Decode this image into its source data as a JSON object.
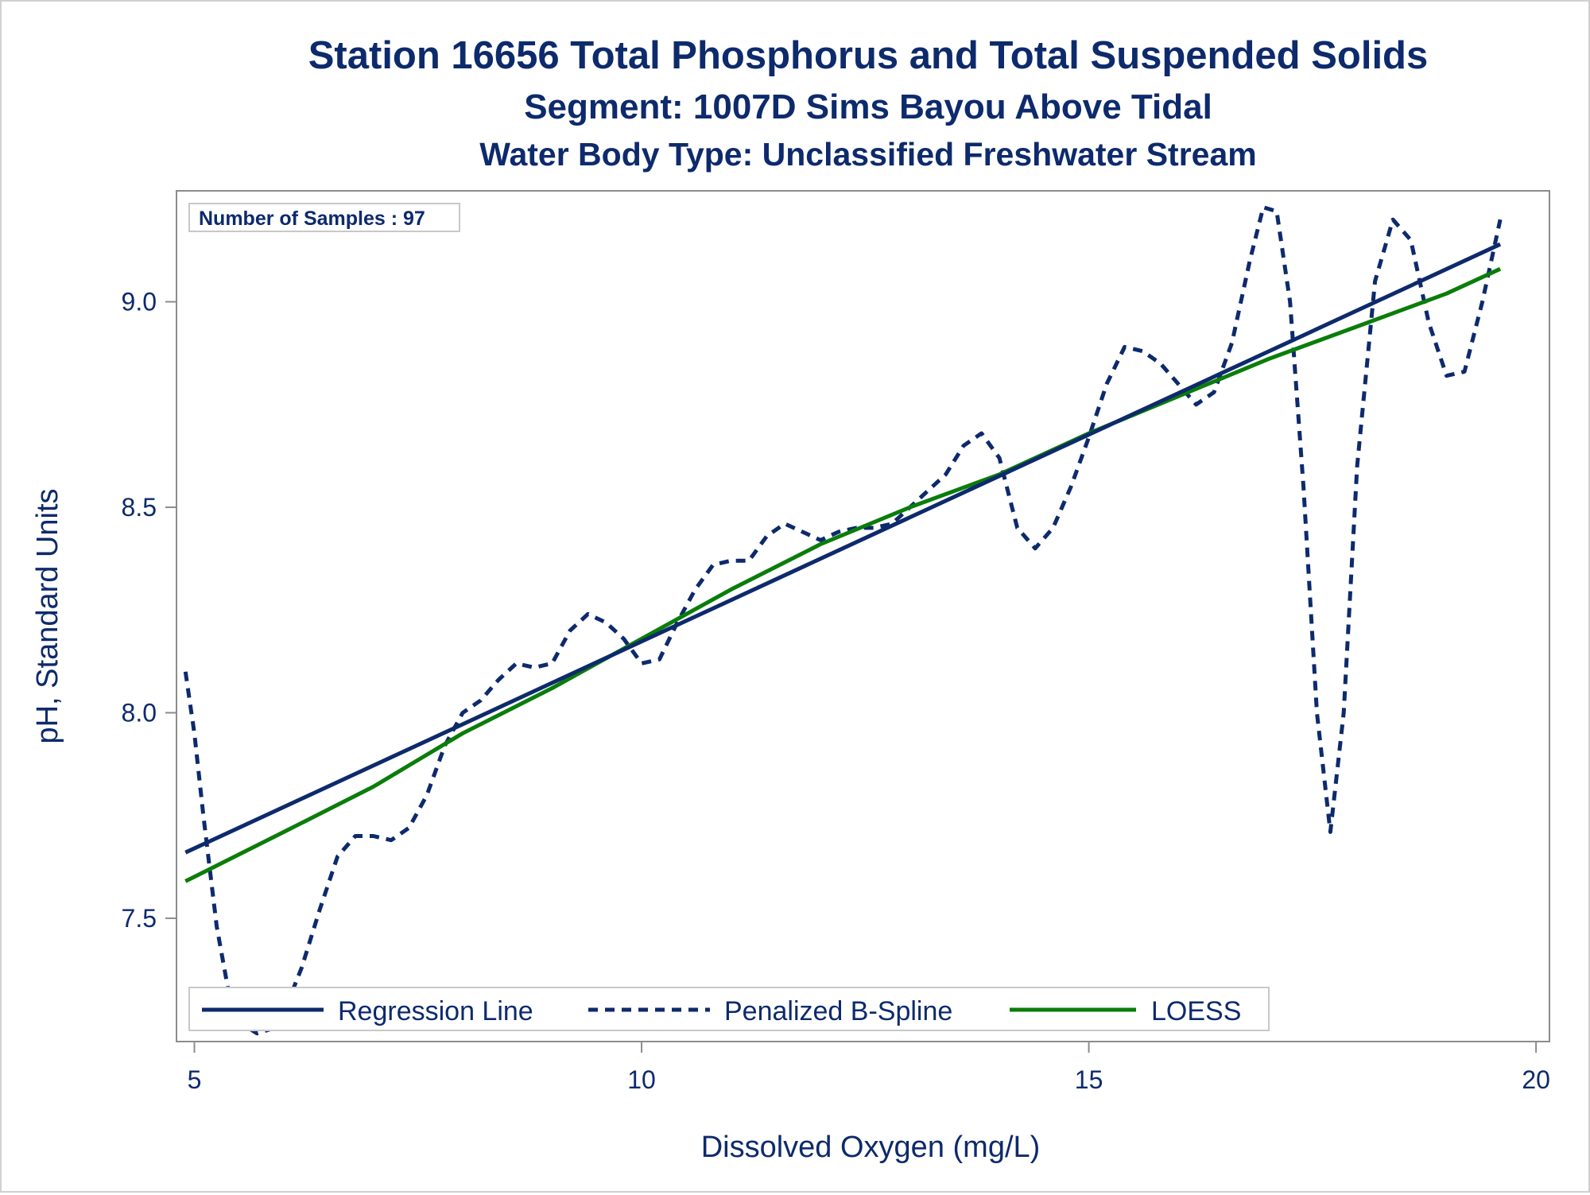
{
  "titles": {
    "line1": "Station 16656  Total Phosphorus and Total Suspended Solids",
    "line2": "Segment: 1007D  Sims Bayou Above Tidal",
    "line3": "Water Body Type: Unclassified Freshwater Stream"
  },
  "inset": {
    "text": "Number of Samples : 97"
  },
  "colors": {
    "text": "#0d2a6c",
    "regression": "#0d2a6c",
    "spline": "#0d2a6c",
    "loess": "#0a7d0a",
    "frame": "#8c8c8c"
  },
  "chart_data": {
    "type": "line",
    "xlabel": "Dissolved Oxygen (mg/L)",
    "ylabel": "pH, Standard Units",
    "xlim": [
      4.8,
      20.15
    ],
    "ylim": [
      7.2,
      9.27
    ],
    "xticks": [
      5,
      10,
      15,
      20
    ],
    "yticks": [
      7.5,
      8.0,
      8.5,
      9.0
    ],
    "xtick_labels": [
      "5",
      "10",
      "15",
      "20"
    ],
    "ytick_labels": [
      "7.5",
      "8.0",
      "8.5",
      "9.0"
    ],
    "grid": false,
    "legend_position": "bottom-inside",
    "series": [
      {
        "name": "Regression Line",
        "style": "solid",
        "color": "#0d2a6c",
        "x": [
          4.9,
          19.6
        ],
        "y": [
          7.66,
          9.14
        ]
      },
      {
        "name": "Penalized B-Spline",
        "style": "dashed",
        "color": "#0d2a6c",
        "x": [
          4.9,
          5.0,
          5.1,
          5.25,
          5.4,
          5.55,
          5.7,
          5.85,
          6.0,
          6.2,
          6.4,
          6.6,
          6.8,
          7.0,
          7.2,
          7.4,
          7.6,
          7.8,
          8.0,
          8.2,
          8.4,
          8.6,
          8.8,
          9.0,
          9.2,
          9.4,
          9.6,
          9.8,
          10.0,
          10.2,
          10.4,
          10.6,
          10.8,
          11.0,
          11.2,
          11.4,
          11.6,
          11.8,
          12.0,
          12.2,
          12.4,
          12.6,
          12.8,
          13.0,
          13.2,
          13.4,
          13.6,
          13.8,
          14.0,
          14.2,
          14.4,
          14.6,
          14.8,
          15.0,
          15.2,
          15.4,
          15.6,
          15.8,
          16.0,
          16.2,
          16.4,
          16.6,
          16.8,
          16.95,
          17.1,
          17.25,
          17.4,
          17.55,
          17.7,
          17.85,
          18.0,
          18.2,
          18.4,
          18.6,
          18.8,
          19.0,
          19.2,
          19.4,
          19.6
        ],
        "y": [
          8.1,
          7.95,
          7.75,
          7.48,
          7.3,
          7.24,
          7.22,
          7.23,
          7.27,
          7.38,
          7.52,
          7.65,
          7.7,
          7.7,
          7.69,
          7.72,
          7.8,
          7.92,
          8.0,
          8.03,
          8.08,
          8.12,
          8.11,
          8.12,
          8.2,
          8.24,
          8.22,
          8.18,
          8.12,
          8.13,
          8.22,
          8.3,
          8.36,
          8.37,
          8.37,
          8.43,
          8.46,
          8.44,
          8.42,
          8.44,
          8.45,
          8.45,
          8.46,
          8.5,
          8.54,
          8.58,
          8.65,
          8.68,
          8.62,
          8.45,
          8.4,
          8.45,
          8.55,
          8.67,
          8.8,
          8.89,
          8.88,
          8.85,
          8.8,
          8.75,
          8.78,
          8.9,
          9.1,
          9.23,
          9.22,
          9.0,
          8.55,
          8.0,
          7.71,
          8.0,
          8.6,
          9.05,
          9.2,
          9.15,
          8.95,
          8.82,
          8.83,
          9.0,
          9.2
        ]
      },
      {
        "name": "LOESS",
        "style": "solid",
        "color": "#0a7d0a",
        "x": [
          4.9,
          6.0,
          7.0,
          8.0,
          9.0,
          10.0,
          11.0,
          12.0,
          13.0,
          14.0,
          15.0,
          16.0,
          17.0,
          18.0,
          19.0,
          19.6
        ],
        "y": [
          7.59,
          7.71,
          7.82,
          7.95,
          8.06,
          8.18,
          8.3,
          8.41,
          8.5,
          8.58,
          8.68,
          8.77,
          8.86,
          8.94,
          9.02,
          9.08
        ]
      }
    ]
  }
}
